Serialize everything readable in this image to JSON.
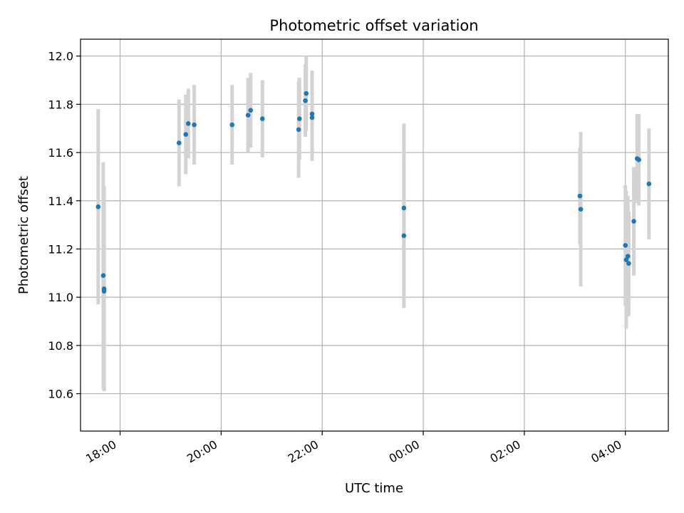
{
  "chart_data": {
    "type": "scatter",
    "title": "Photometric offset variation",
    "xlabel": "UTC time",
    "ylabel": "Photometric offset",
    "x_unit": "hours_utc_continuous",
    "xlim": [
      "17:13",
      "04:51"
    ],
    "ylim": [
      10.445,
      12.07
    ],
    "grid": true,
    "x_ticks": [
      {
        "value": "18:00",
        "label": "18:00"
      },
      {
        "value": "20:00",
        "label": "20:00"
      },
      {
        "value": "22:00",
        "label": "22:00"
      },
      {
        "value": "00:00",
        "label": "00:00"
      },
      {
        "value": "02:00",
        "label": "02:00"
      },
      {
        "value": "04:00",
        "label": "04:00"
      }
    ],
    "y_ticks": [
      "10.6",
      "10.8",
      "11.0",
      "11.2",
      "11.4",
      "11.6",
      "11.8",
      "12.0"
    ],
    "colors": {
      "point": "#1f77b4",
      "errorbar": "#d3d3d3",
      "grid": "#b0b0b0"
    },
    "points": [
      {
        "t": "17:34",
        "y": 11.375,
        "err": 0.405
      },
      {
        "t": "17:40",
        "y": 11.09,
        "err": 0.47
      },
      {
        "t": "17:41",
        "y": 11.035,
        "err": 0.425
      },
      {
        "t": "17:41",
        "y": 11.025,
        "err": 0.41
      },
      {
        "t": "19:10",
        "y": 11.64,
        "err": 0.18
      },
      {
        "t": "19:18",
        "y": 11.675,
        "err": 0.165
      },
      {
        "t": "19:21",
        "y": 11.72,
        "err": 0.145
      },
      {
        "t": "19:28",
        "y": 11.715,
        "err": 0.165
      },
      {
        "t": "20:13",
        "y": 11.715,
        "err": 0.165
      },
      {
        "t": "20:32",
        "y": 11.755,
        "err": 0.155
      },
      {
        "t": "20:35",
        "y": 11.775,
        "err": 0.155
      },
      {
        "t": "20:49",
        "y": 11.74,
        "err": 0.16
      },
      {
        "t": "21:32",
        "y": 11.695,
        "err": 0.2
      },
      {
        "t": "21:33",
        "y": 11.74,
        "err": 0.17
      },
      {
        "t": "21:40",
        "y": 11.815,
        "err": 0.15
      },
      {
        "t": "21:41",
        "y": 11.845,
        "err": 0.155
      },
      {
        "t": "21:48",
        "y": 11.76,
        "err": 0.18
      },
      {
        "t": "21:48",
        "y": 11.745,
        "err": 0.18
      },
      {
        "t": "23:37",
        "y": 11.37,
        "err": 0.35
      },
      {
        "t": "23:37",
        "y": 11.255,
        "err": 0.3
      },
      {
        "t": "03:06",
        "y": 11.42,
        "err": 0.2
      },
      {
        "t": "03:07",
        "y": 11.365,
        "err": 0.32
      },
      {
        "t": "04:00",
        "y": 11.215,
        "err": 0.25
      },
      {
        "t": "04:01",
        "y": 11.155,
        "err": 0.285
      },
      {
        "t": "04:03",
        "y": 11.17,
        "err": 0.25
      },
      {
        "t": "04:04",
        "y": 11.14,
        "err": 0.215
      },
      {
        "t": "04:10",
        "y": 11.315,
        "err": 0.225
      },
      {
        "t": "04:14",
        "y": 11.575,
        "err": 0.185
      },
      {
        "t": "04:16",
        "y": 11.57,
        "err": 0.19
      },
      {
        "t": "04:28",
        "y": 11.47,
        "err": 0.23
      }
    ]
  }
}
